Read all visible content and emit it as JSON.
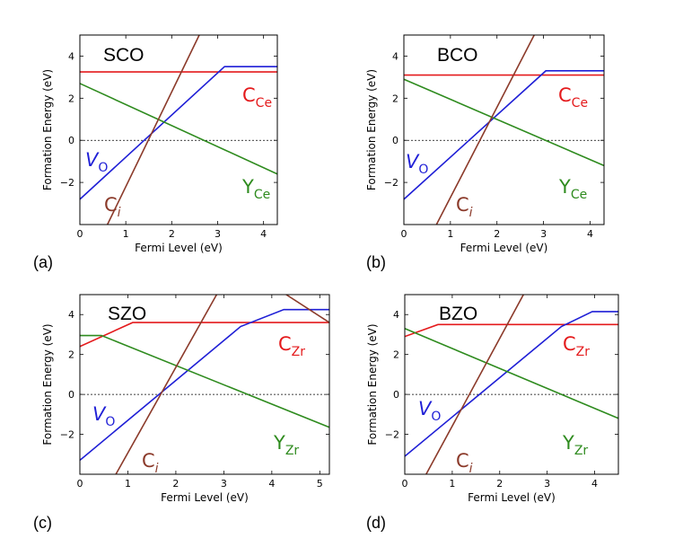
{
  "colors": {
    "C": "#e41a1c",
    "V": "#1f1fd6",
    "Y": "#2e8b1e",
    "Ci": "#8b3a2a",
    "ref": "#000000"
  },
  "chart_data": [
    {
      "type": "line",
      "panel": "(a)",
      "title": "SCO",
      "xlabel": "Fermi Level (eV)",
      "ylabel": "Formation Energy (eV)",
      "xlim": [
        0,
        4.3
      ],
      "ylim": [
        -4,
        5
      ],
      "xticks": [
        0,
        1,
        2,
        3,
        4
      ],
      "yticks": [
        -2,
        0,
        2,
        4
      ],
      "series": [
        {
          "name": "C_Ce",
          "color_key": "C",
          "points": [
            [
              0,
              3.25
            ],
            [
              4.3,
              3.25
            ]
          ]
        },
        {
          "name": "V_O",
          "color_key": "V",
          "points": [
            [
              0,
              -2.8
            ],
            [
              3.15,
              3.5
            ],
            [
              4.3,
              3.5
            ]
          ]
        },
        {
          "name": "Y_Ce",
          "color_key": "Y",
          "points": [
            [
              0,
              2.7
            ],
            [
              4.3,
              -1.6
            ]
          ]
        },
        {
          "name": "C_i",
          "color_key": "Ci",
          "points": [
            [
              0.6,
              -4.0
            ],
            [
              2.6,
              5.0
            ]
          ]
        }
      ],
      "labels": [
        {
          "text": "C",
          "sub": "Ce",
          "color_key": "C"
        },
        {
          "text": "V",
          "sub": "O",
          "color_key": "V",
          "italic": true
        },
        {
          "text": "Y",
          "sub": "Ce",
          "color_key": "Y"
        },
        {
          "text": "C",
          "sub": "i",
          "color_key": "Ci"
        }
      ]
    },
    {
      "type": "line",
      "panel": "(b)",
      "title": "BCO",
      "xlabel": "Fermi Level (eV)",
      "ylabel": "Formation Energy (eV)",
      "xlim": [
        0,
        4.3
      ],
      "ylim": [
        -4,
        5
      ],
      "xticks": [
        0,
        1,
        2,
        3,
        4
      ],
      "yticks": [
        -2,
        0,
        2,
        4
      ],
      "series": [
        {
          "name": "C_Ce",
          "color_key": "C",
          "points": [
            [
              0,
              3.1
            ],
            [
              4.3,
              3.1
            ]
          ]
        },
        {
          "name": "V_O",
          "color_key": "V",
          "points": [
            [
              0,
              -2.8
            ],
            [
              3.05,
              3.3
            ],
            [
              4.3,
              3.3
            ]
          ]
        },
        {
          "name": "Y_Ce",
          "color_key": "Y",
          "points": [
            [
              0,
              2.9
            ],
            [
              4.3,
              -1.2
            ]
          ]
        },
        {
          "name": "C_i",
          "color_key": "Ci",
          "points": [
            [
              0.7,
              -4.0
            ],
            [
              2.8,
              5.0
            ]
          ]
        }
      ],
      "labels": [
        {
          "text": "C",
          "sub": "Ce",
          "color_key": "C"
        },
        {
          "text": "V",
          "sub": "O",
          "color_key": "V",
          "italic": true
        },
        {
          "text": "Y",
          "sub": "Ce",
          "color_key": "Y"
        },
        {
          "text": "C",
          "sub": "i",
          "color_key": "Ci"
        }
      ]
    },
    {
      "type": "line",
      "panel": "(c)",
      "title": "SZO",
      "xlabel": "Fermi Level (eV)",
      "ylabel": "Formation Energy (eV)",
      "xlim": [
        0,
        5.2
      ],
      "ylim": [
        -4,
        5
      ],
      "xticks": [
        0,
        1,
        2,
        3,
        4,
        5
      ],
      "yticks": [
        -2,
        0,
        2,
        4
      ],
      "series": [
        {
          "name": "C_Zr",
          "color_key": "C",
          "points": [
            [
              0,
              2.4
            ],
            [
              1.1,
              3.6
            ],
            [
              5.2,
              3.6
            ]
          ]
        },
        {
          "name": "V_O",
          "color_key": "V",
          "points": [
            [
              0,
              -3.3
            ],
            [
              3.35,
              3.4
            ],
            [
              4.25,
              4.25
            ],
            [
              5.2,
              4.25
            ]
          ]
        },
        {
          "name": "Y_Zr",
          "color_key": "Y",
          "points": [
            [
              0,
              2.95
            ],
            [
              0.45,
              2.95
            ],
            [
              5.2,
              -1.65
            ]
          ]
        },
        {
          "name": "C_i",
          "color_key": "Ci",
          "points": [
            [
              0.75,
              -4.0
            ],
            [
              2.85,
              5.0
            ]
          ]
        },
        {
          "name": "C_i (high-E branch)",
          "color_key": "Ci",
          "points": [
            [
              4.3,
              5.0
            ],
            [
              5.2,
              3.6
            ]
          ]
        }
      ],
      "labels": [
        {
          "text": "C",
          "sub": "Zr",
          "color_key": "C"
        },
        {
          "text": "V",
          "sub": "O",
          "color_key": "V",
          "italic": true
        },
        {
          "text": "Y",
          "sub": "Zr",
          "color_key": "Y"
        },
        {
          "text": "C",
          "sub": "i",
          "color_key": "Ci"
        }
      ]
    },
    {
      "type": "line",
      "panel": "(d)",
      "title": "BZO",
      "xlabel": "Fermi Level (eV)",
      "ylabel": "Formation Energy (eV)",
      "xlim": [
        0,
        4.5
      ],
      "ylim": [
        -4,
        5
      ],
      "xticks": [
        0,
        1,
        2,
        3,
        4
      ],
      "yticks": [
        -2,
        0,
        2,
        4
      ],
      "series": [
        {
          "name": "C_Zr",
          "color_key": "C",
          "points": [
            [
              0,
              2.9
            ],
            [
              0.7,
              3.5
            ],
            [
              4.5,
              3.5
            ]
          ]
        },
        {
          "name": "V_O",
          "color_key": "V",
          "points": [
            [
              0,
              -3.1
            ],
            [
              3.3,
              3.4
            ],
            [
              3.95,
              4.15
            ],
            [
              4.5,
              4.15
            ]
          ]
        },
        {
          "name": "Y_Zr",
          "color_key": "Y",
          "points": [
            [
              0,
              3.3
            ],
            [
              4.5,
              -1.2
            ]
          ]
        },
        {
          "name": "C_i",
          "color_key": "Ci",
          "points": [
            [
              0.45,
              -4.0
            ],
            [
              2.5,
              5.0
            ]
          ]
        }
      ],
      "labels": [
        {
          "text": "C",
          "sub": "Zr",
          "color_key": "C"
        },
        {
          "text": "V",
          "sub": "O",
          "color_key": "V",
          "italic": true
        },
        {
          "text": "Y",
          "sub": "Zr",
          "color_key": "Y"
        },
        {
          "text": "C",
          "sub": "i",
          "color_key": "Ci"
        }
      ]
    }
  ]
}
